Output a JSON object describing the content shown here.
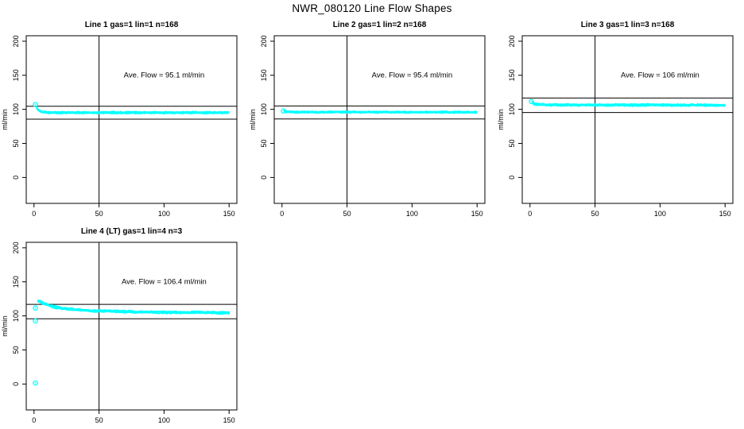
{
  "figure": {
    "title": "NWR_080120  Line Flow Shapes",
    "background": "#ffffff",
    "point_color": "#00ffff",
    "axis_color": "#000000"
  },
  "chart_data": [
    {
      "type": "scatter",
      "title": "Line 1 gas=1 lin=1 n=168",
      "ylabel": "ml/min",
      "xlim": [
        -6,
        156
      ],
      "ylim": [
        -38,
        208
      ],
      "xticks": [
        0,
        50,
        100,
        150
      ],
      "yticks": [
        0,
        50,
        100,
        150,
        200
      ],
      "grid": false,
      "vline_x": 50,
      "hlines": [
        104.6,
        85.6
      ],
      "ave_flow_ml_min": 95.1,
      "annotation": {
        "text": "Ave. Flow =  95.1  ml/min",
        "x": 100,
        "y": 150
      },
      "series_profile": {
        "x": [
          2,
          3,
          4,
          5,
          7,
          10,
          20,
          150
        ],
        "y": [
          103,
          99.5,
          97.8,
          96.8,
          95.8,
          95.3,
          95.2,
          95.2
        ]
      },
      "band_half_width": 1.0,
      "jitter": 0.8,
      "layers": 3,
      "step": 1.2,
      "outliers": [
        [
          1,
          107
        ]
      ]
    },
    {
      "type": "scatter",
      "title": "Line 2 gas=1 lin=2 n=168",
      "ylabel": "ml/min",
      "xlim": [
        -6,
        156
      ],
      "ylim": [
        -38,
        208
      ],
      "xticks": [
        0,
        50,
        100,
        150
      ],
      "yticks": [
        0,
        50,
        100,
        150,
        200
      ],
      "grid": false,
      "vline_x": 50,
      "hlines": [
        104.9,
        85.9
      ],
      "ave_flow_ml_min": 95.4,
      "annotation": {
        "text": "Ave. Flow =  95.4  ml/min",
        "x": 100,
        "y": 150
      },
      "series_profile": {
        "x": [
          2,
          3,
          5,
          10,
          150
        ],
        "y": [
          97.5,
          96.6,
          96.2,
          96.0,
          95.8
        ]
      },
      "band_half_width": 0.9,
      "jitter": 0.7,
      "layers": 3,
      "step": 1.2,
      "outliers": [
        [
          1,
          97.5
        ]
      ]
    },
    {
      "type": "scatter",
      "title": "Line 3 gas=1 lin=3 n=168",
      "ylabel": "ml/min",
      "xlim": [
        -6,
        156
      ],
      "ylim": [
        -38,
        208
      ],
      "xticks": [
        0,
        50,
        100,
        150
      ],
      "yticks": [
        0,
        50,
        100,
        150,
        200
      ],
      "grid": false,
      "vline_x": 50,
      "hlines": [
        116.6,
        95.4
      ],
      "ave_flow_ml_min": 106,
      "annotation": {
        "text": "Ave. Flow =  106  ml/min",
        "x": 100,
        "y": 150
      },
      "series_profile": {
        "x": [
          2,
          3,
          5,
          10,
          150
        ],
        "y": [
          109.5,
          108.2,
          107.2,
          106.6,
          106.1
        ]
      },
      "band_half_width": 1.1,
      "jitter": 0.9,
      "layers": 3,
      "step": 1.2,
      "outliers": [
        [
          1,
          111.5
        ]
      ]
    },
    {
      "type": "scatter",
      "title": "Line 4 (LT) gas=1 lin=4 n=3",
      "ylabel": "ml/min",
      "xlim": [
        -6,
        156
      ],
      "ylim": [
        -38,
        208
      ],
      "xticks": [
        0,
        50,
        100,
        150
      ],
      "yticks": [
        0,
        50,
        100,
        150,
        200
      ],
      "grid": false,
      "vline_x": 50,
      "hlines": [
        117.0,
        95.8
      ],
      "ave_flow_ml_min": 106.4,
      "annotation": {
        "text": "Ave. Flow =  106.4  ml/min",
        "x": 100,
        "y": 150
      },
      "series_profile": {
        "x": [
          3,
          5,
          8,
          12,
          16,
          20,
          25,
          30,
          40,
          50,
          60,
          80,
          100,
          125,
          150
        ],
        "y": [
          122,
          120.5,
          118,
          115,
          113,
          111.8,
          110.3,
          109.3,
          108,
          107.2,
          106.6,
          105.8,
          105.3,
          105.0,
          104.6
        ]
      },
      "band_half_width": 1.2,
      "jitter": 1.1,
      "layers": 3,
      "step": 1.5,
      "outliers": [
        [
          1,
          111.5
        ],
        [
          1,
          92.5
        ],
        [
          1,
          1.5
        ]
      ]
    }
  ]
}
